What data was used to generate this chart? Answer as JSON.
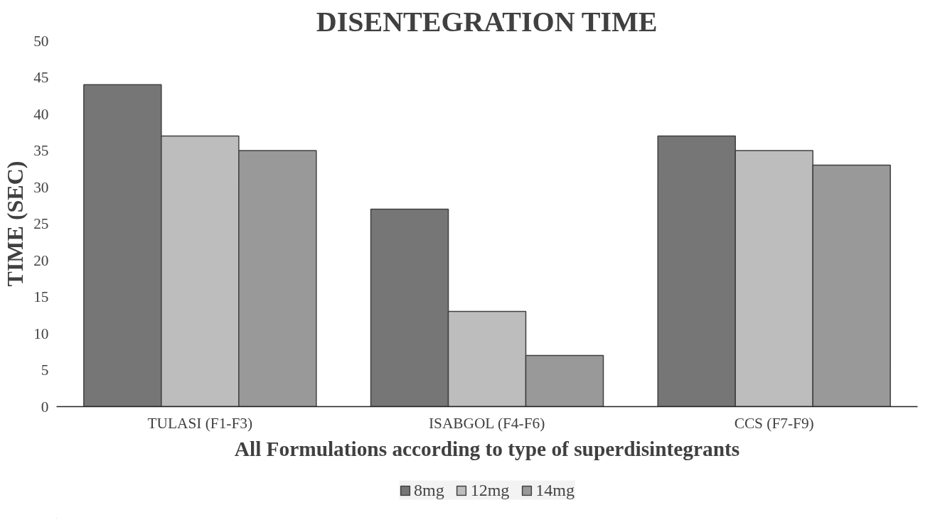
{
  "chart_data": {
    "type": "bar",
    "title": "DISENTEGRATION TIME",
    "xlabel": "All Formulations according to type of superdisintegrants",
    "ylabel": "TIME (SEC)",
    "categories": [
      "TULASI (F1-F3)",
      "ISABGOL (F4-F6)",
      "CCS (F7-F9)"
    ],
    "series": [
      {
        "name": "8mg",
        "color": "#767676",
        "values": [
          44,
          27,
          37
        ]
      },
      {
        "name": "12mg",
        "color": "#bdbdbd",
        "values": [
          37,
          13,
          35
        ]
      },
      {
        "name": "14mg",
        "color": "#999999",
        "values": [
          35,
          7,
          33
        ]
      }
    ],
    "ylim": [
      0,
      50
    ],
    "yticks": [
      0,
      5,
      10,
      15,
      20,
      25,
      30,
      35,
      40,
      45,
      50
    ],
    "grid": false,
    "legend": "bottom"
  }
}
